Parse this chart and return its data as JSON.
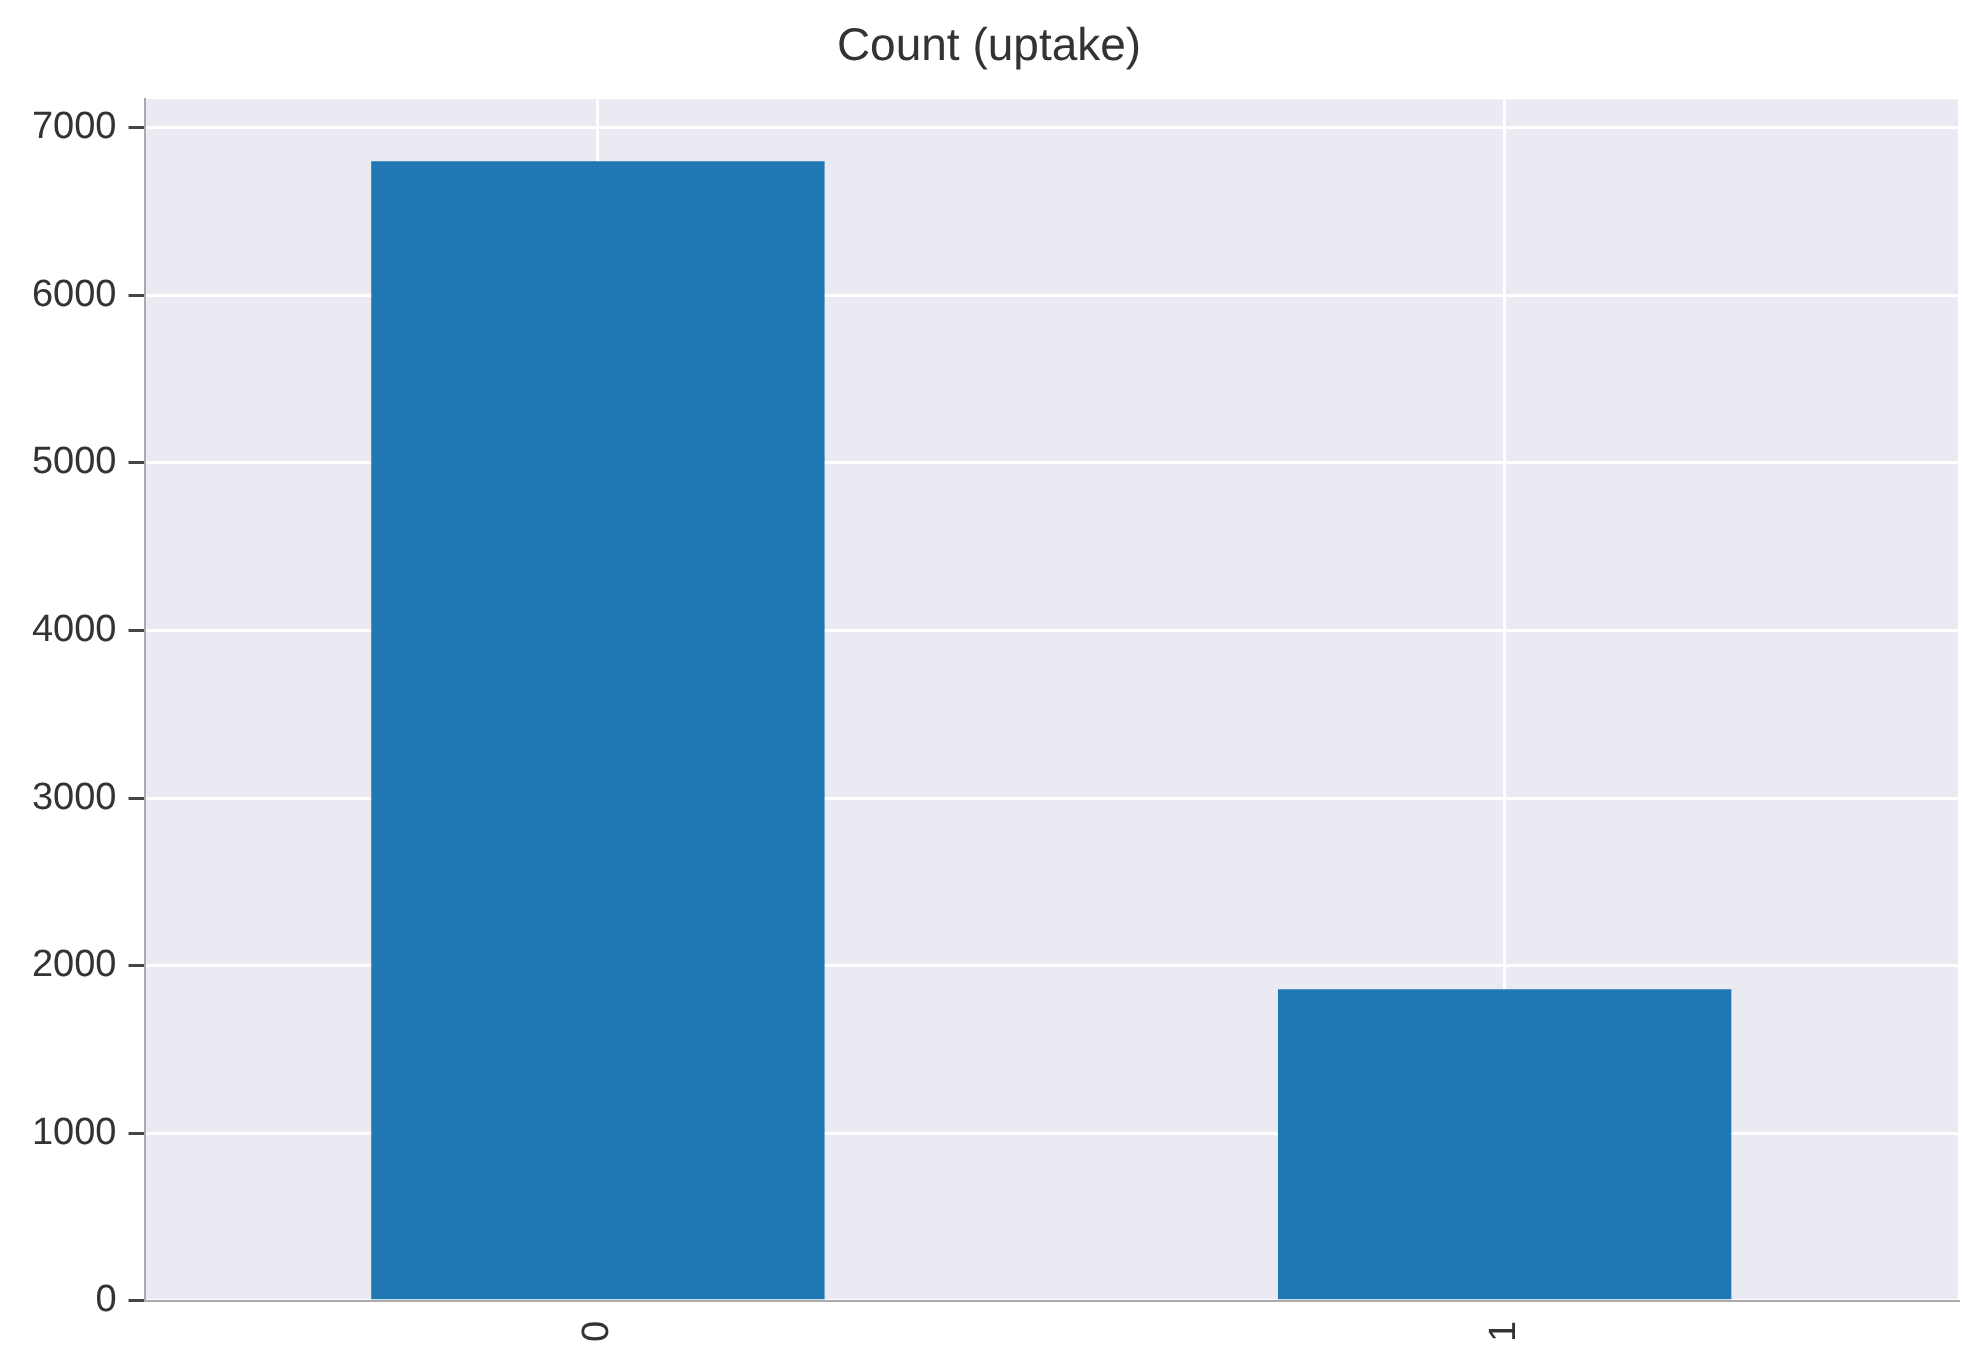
{
  "chart_data": {
    "type": "bar",
    "title": "Count (uptake)",
    "categories": [
      "0",
      "1"
    ],
    "values": [
      6800,
      1860
    ],
    "color": "#1f77b4",
    "ylim": [
      0,
      7170
    ],
    "yticks": [
      0,
      1000,
      2000,
      3000,
      4000,
      5000,
      6000,
      7000
    ],
    "grid": true,
    "legend": false
  }
}
